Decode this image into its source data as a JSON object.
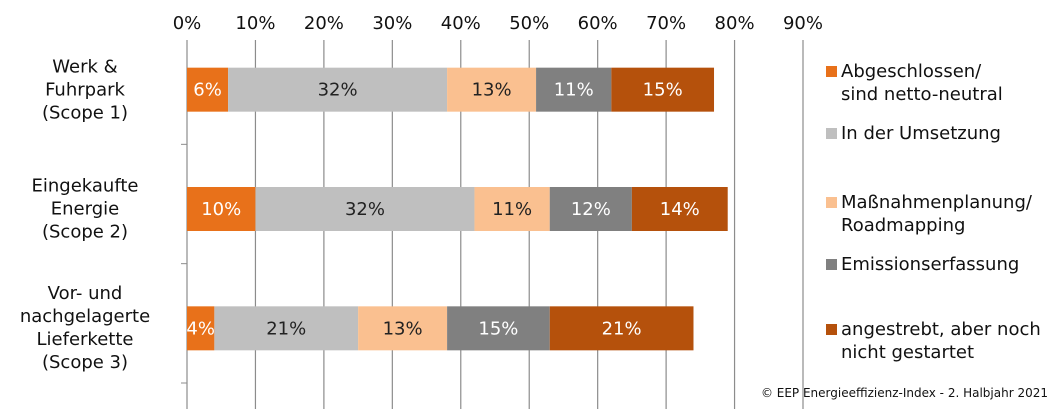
{
  "chart_data": {
    "type": "stacked_horizontal_bar",
    "categories": [
      "Werk &\nFuhrpark\n(Scope 1)",
      "Eingekaufte\nEnergie\n(Scope 2)",
      "Vor- und\nnachgelagerte\nLieferkette\n(Scope 3)"
    ],
    "series": [
      {
        "name": "Abgeschlossen/\nsind netto-neutral",
        "color": "#e8711a",
        "values": [
          6,
          10,
          4
        ],
        "value_labels": [
          "6%",
          "10%",
          "4%"
        ]
      },
      {
        "name": "In der Umsetzung",
        "color": "#bfbfbf",
        "values": [
          32,
          32,
          21
        ],
        "value_labels": [
          "32%",
          "32%",
          "21%"
        ]
      },
      {
        "name": "Maßnahmenplanung/\nRoadmapping",
        "color": "#fac090",
        "values": [
          13,
          11,
          13
        ],
        "value_labels": [
          "13%",
          "11%",
          "13%"
        ]
      },
      {
        "name": "Emissionserfassung",
        "color": "#808080",
        "values": [
          11,
          12,
          15
        ],
        "value_labels": [
          "11%",
          "12%",
          "15%"
        ]
      },
      {
        "name": "angestrebt, aber noch\nnicht gestartet",
        "color": "#b5510c",
        "values": [
          15,
          14,
          21
        ],
        "value_labels": [
          "15%",
          "14%",
          "21%"
        ]
      }
    ],
    "xlim": [
      0,
      90
    ],
    "xticks": [
      {
        "value": 0,
        "label": "0%"
      },
      {
        "value": 10,
        "label": "10%"
      },
      {
        "value": 20,
        "label": "20%"
      },
      {
        "value": 30,
        "label": "30%"
      },
      {
        "value": 40,
        "label": "40%"
      },
      {
        "value": 50,
        "label": "50%"
      },
      {
        "value": 60,
        "label": "60%"
      },
      {
        "value": 70,
        "label": "70%"
      },
      {
        "value": 80,
        "label": "80%"
      },
      {
        "value": 90,
        "label": "90%"
      }
    ],
    "grid": true,
    "source": "© EEP Energieeffizienz-Index - 2. Halbjahr 2021"
  }
}
